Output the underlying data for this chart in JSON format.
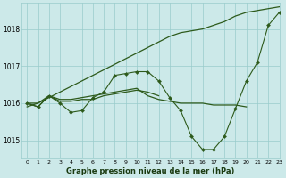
{
  "bg_color": "#cce9e9",
  "grid_color": "#99cccc",
  "line_color": "#2d5a1b",
  "title": "Graphe pression niveau de la mer (hPa)",
  "xlim": [
    -0.5,
    23
  ],
  "ylim": [
    1014.5,
    1018.7
  ],
  "yticks": [
    1015,
    1016,
    1017,
    1018
  ],
  "xticks": [
    0,
    1,
    2,
    3,
    4,
    5,
    6,
    7,
    8,
    9,
    10,
    11,
    12,
    13,
    14,
    15,
    16,
    17,
    18,
    19,
    20,
    21,
    22,
    23
  ],
  "series": [
    {
      "x": [
        0,
        1,
        2,
        3,
        4,
        5,
        6,
        7,
        8,
        9,
        10,
        11,
        12,
        13,
        14,
        15,
        16,
        17,
        18,
        19,
        20,
        21,
        22,
        23
      ],
      "y": [
        1016.0,
        1015.9,
        1016.2,
        1016.0,
        1015.75,
        1015.8,
        1016.15,
        1016.3,
        1016.75,
        1016.8,
        1016.85,
        1016.85,
        1016.6,
        1016.15,
        1015.8,
        1015.1,
        1014.75,
        1014.75,
        1015.1,
        1015.85,
        1016.6,
        1017.1,
        1018.1,
        1018.45
      ],
      "marker": true
    },
    {
      "x": [
        0,
        1,
        2,
        3,
        4,
        5,
        6,
        7,
        8,
        9,
        10,
        11,
        12,
        13,
        14,
        15,
        16,
        17,
        18,
        19,
        20
      ],
      "y": [
        1016.0,
        1016.0,
        1016.2,
        1016.1,
        1016.1,
        1016.15,
        1016.2,
        1016.25,
        1016.3,
        1016.35,
        1016.4,
        1016.2,
        1016.1,
        1016.05,
        1016.0,
        1016.0,
        1016.0,
        1015.95,
        1015.95,
        1015.95,
        1015.9
      ],
      "marker": false
    },
    {
      "x": [
        0,
        1,
        2,
        3,
        4,
        5,
        6,
        7,
        8,
        9,
        10,
        11,
        12,
        13,
        14,
        15,
        16,
        17,
        18,
        19,
        20,
        21,
        22,
        23
      ],
      "y": [
        1015.9,
        1016.0,
        1016.15,
        1016.3,
        1016.45,
        1016.6,
        1016.75,
        1016.9,
        1017.05,
        1017.2,
        1017.35,
        1017.5,
        1017.65,
        1017.8,
        1017.9,
        1017.95,
        1018.0,
        1018.1,
        1018.2,
        1018.35,
        1018.45,
        1018.5,
        1018.55,
        1018.6
      ],
      "marker": false
    },
    {
      "x": [
        0,
        1,
        2,
        3,
        4,
        5,
        6,
        7,
        8,
        9,
        10,
        11,
        12
      ],
      "y": [
        1016.0,
        1015.9,
        1016.2,
        1016.05,
        1016.05,
        1016.1,
        1016.1,
        1016.2,
        1016.25,
        1016.3,
        1016.35,
        1016.3,
        1016.2
      ],
      "marker": false
    }
  ]
}
